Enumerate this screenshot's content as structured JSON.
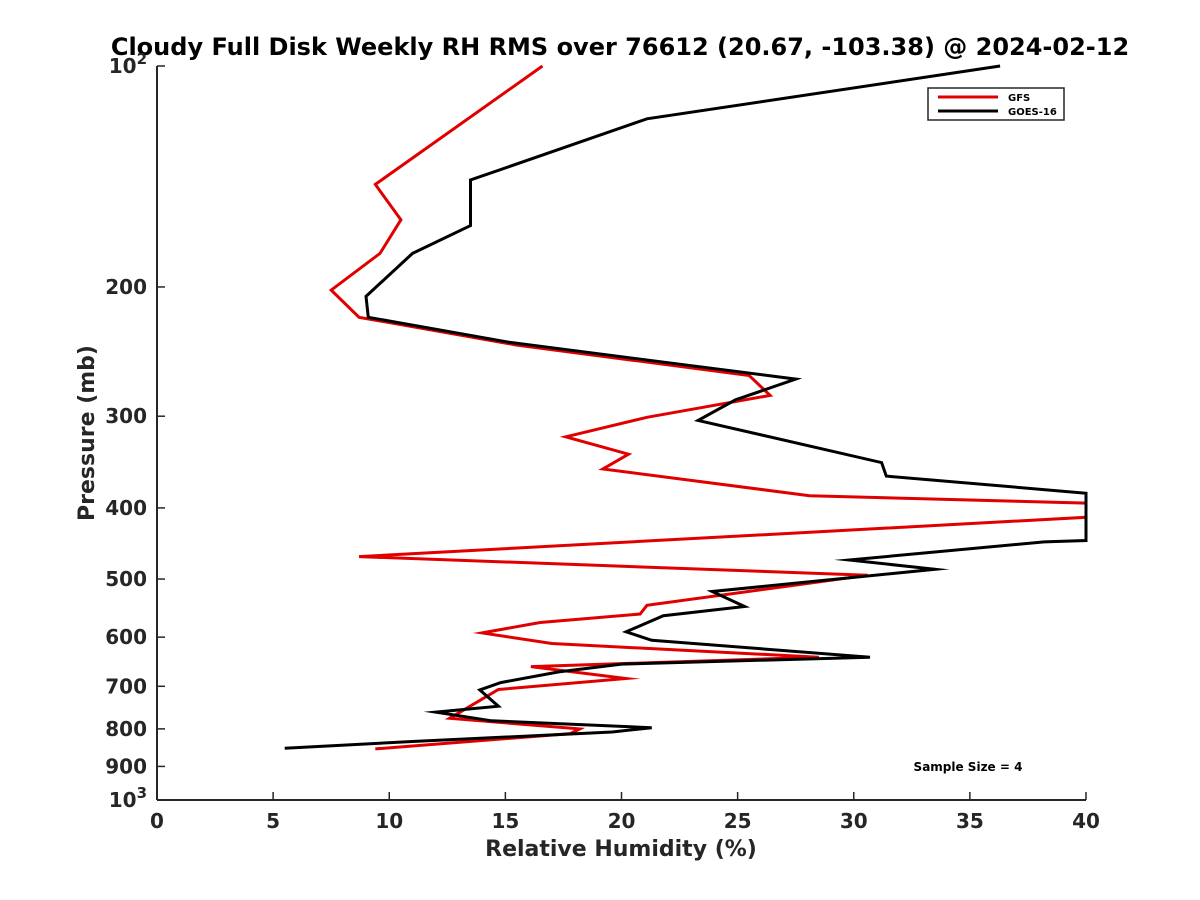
{
  "chart_data": {
    "type": "line",
    "title": "Cloudy Full Disk Weekly RH RMS over 76612 (20.67, -103.38) @ 2024-02-12",
    "xlabel": "Relative Humidity (%)",
    "ylabel": "Pressure (mb)",
    "xlim": [
      0,
      40
    ],
    "ylim": [
      100,
      1000
    ],
    "yscale": "log",
    "y_reversed": true,
    "xticks": [
      0,
      5,
      10,
      15,
      20,
      25,
      30,
      35,
      40
    ],
    "yticks": [
      {
        "value": 100,
        "base": "10",
        "exp": "2"
      },
      {
        "value": 200,
        "label": "200"
      },
      {
        "value": 300,
        "label": "300"
      },
      {
        "value": 400,
        "label": "400"
      },
      {
        "value": 500,
        "label": "500"
      },
      {
        "value": 600,
        "label": "600"
      },
      {
        "value": 700,
        "label": "700"
      },
      {
        "value": 800,
        "label": "800"
      },
      {
        "value": 900,
        "label": "900"
      },
      {
        "value": 1000,
        "base": "10",
        "exp": "3"
      }
    ],
    "legend_position": "top-right",
    "annotation": "Sample Size = 4",
    "series": [
      {
        "name": "GFS",
        "color": "#e00000",
        "points": [
          [
            16.6,
            100
          ],
          [
            9.4,
            145
          ],
          [
            10.5,
            162
          ],
          [
            9.6,
            180
          ],
          [
            7.5,
            202
          ],
          [
            8.7,
            220
          ],
          [
            15.5,
            240
          ],
          [
            25.5,
            264
          ],
          [
            26.4,
            281
          ],
          [
            21.1,
            301
          ],
          [
            17.6,
            320
          ],
          [
            20.3,
            338
          ],
          [
            19.2,
            354
          ],
          [
            28.1,
            385
          ],
          [
            40.0,
            394
          ],
          [
            40.0,
            412
          ],
          [
            8.7,
            466
          ],
          [
            30.6,
            494
          ],
          [
            27.4,
            510
          ],
          [
            21.1,
            543
          ],
          [
            20.8,
            558
          ],
          [
            16.5,
            573
          ],
          [
            14.0,
            592
          ],
          [
            17.0,
            612
          ],
          [
            28.5,
            639
          ],
          [
            16.1,
            658
          ],
          [
            20.2,
            683
          ],
          [
            14.7,
            707
          ],
          [
            12.6,
            774
          ],
          [
            18.2,
            800
          ],
          [
            17.8,
            812
          ],
          [
            9.4,
            852
          ]
        ]
      },
      {
        "name": "GOES-16",
        "color": "#000000",
        "points": [
          [
            36.3,
            100
          ],
          [
            21.1,
            118
          ],
          [
            13.5,
            143
          ],
          [
            13.5,
            165
          ],
          [
            11.0,
            180
          ],
          [
            9.0,
            206
          ],
          [
            9.1,
            220
          ],
          [
            15.2,
            238
          ],
          [
            27.5,
            267
          ],
          [
            24.9,
            285
          ],
          [
            23.3,
            304
          ],
          [
            31.2,
            347
          ],
          [
            31.4,
            362
          ],
          [
            40.0,
            382
          ],
          [
            40.0,
            443
          ],
          [
            38.2,
            445
          ],
          [
            29.8,
            471
          ],
          [
            33.5,
            485
          ],
          [
            23.9,
            520
          ],
          [
            25.3,
            545
          ],
          [
            21.8,
            561
          ],
          [
            20.2,
            590
          ],
          [
            21.3,
            606
          ],
          [
            30.7,
            639
          ],
          [
            20.0,
            653
          ],
          [
            17.3,
            669
          ],
          [
            14.8,
            692
          ],
          [
            13.9,
            708
          ],
          [
            14.7,
            745
          ],
          [
            12.0,
            759
          ],
          [
            14.4,
            780
          ],
          [
            21.3,
            797
          ],
          [
            19.6,
            808
          ],
          [
            11.1,
            832
          ],
          [
            5.5,
            850
          ]
        ]
      }
    ]
  }
}
